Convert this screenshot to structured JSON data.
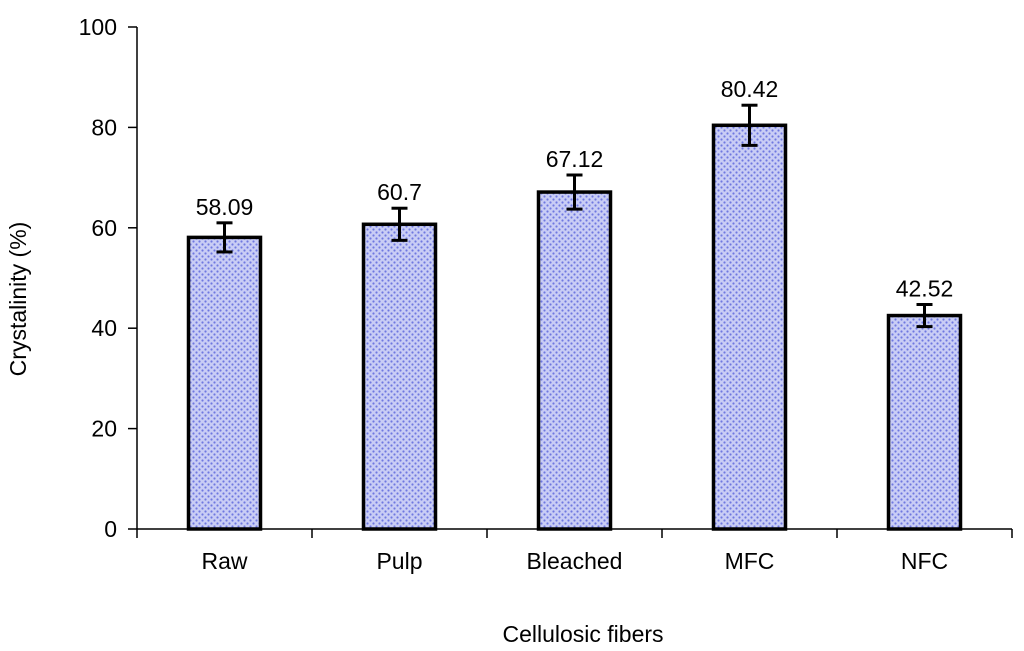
{
  "chart_data": {
    "type": "bar",
    "categories": [
      "Raw",
      "Pulp",
      "Bleached",
      "MFC",
      "NFC"
    ],
    "values": [
      58.09,
      60.7,
      67.12,
      80.42,
      42.52
    ],
    "error": [
      2.9,
      3.2,
      3.4,
      4.0,
      2.2
    ],
    "data_labels": [
      "58.09",
      "60.7",
      "67.12",
      "80.42",
      "42.52"
    ],
    "xlabel": "Cellulosic fibers",
    "ylabel": "Crystalinity (%)",
    "ylim": [
      0,
      100
    ],
    "yticks": [
      0,
      20,
      40,
      60,
      80,
      100
    ],
    "ytick_labels": [
      "0",
      "20",
      "40",
      "60",
      "80",
      "100"
    ],
    "grid": false,
    "legend": "none",
    "bar_fill": "#c9cdf5",
    "bar_pattern_color": "#6f78e0",
    "bar_edge": "#000000"
  }
}
